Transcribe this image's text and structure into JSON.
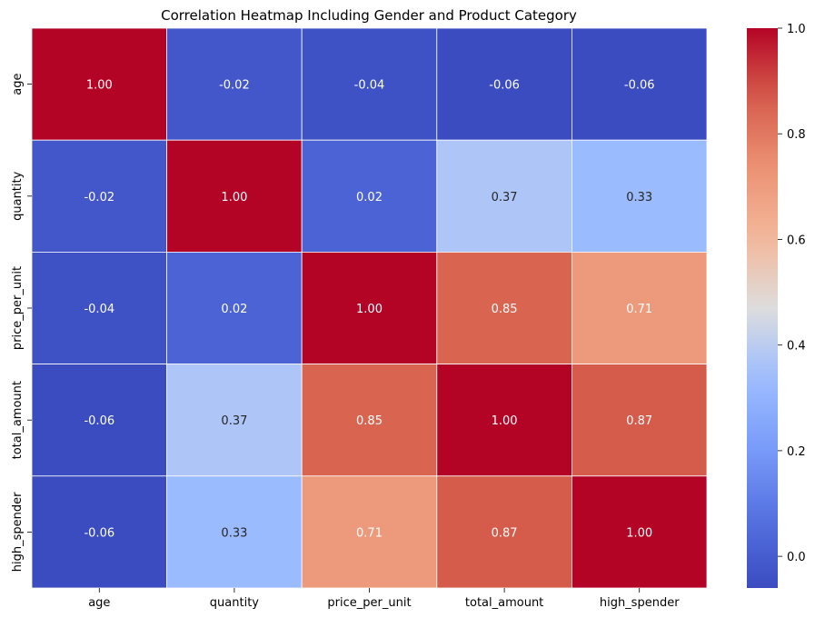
{
  "chart_data": {
    "type": "heatmap",
    "title": "Correlation Heatmap Including Gender and Product Category",
    "xlabel": "",
    "ylabel": "",
    "x_categories": [
      "age",
      "quantity",
      "price_per_unit",
      "total_amount",
      "high_spender"
    ],
    "y_categories": [
      "age",
      "quantity",
      "price_per_unit",
      "total_amount",
      "high_spender"
    ],
    "values": [
      [
        1.0,
        -0.02,
        -0.04,
        -0.06,
        -0.06
      ],
      [
        -0.02,
        1.0,
        0.02,
        0.37,
        0.33
      ],
      [
        -0.04,
        0.02,
        1.0,
        0.85,
        0.71
      ],
      [
        -0.06,
        0.37,
        0.85,
        1.0,
        0.87
      ],
      [
        -0.06,
        0.33,
        0.71,
        0.87,
        1.0
      ]
    ],
    "value_format": "0.00",
    "colormap": "coolwarm",
    "colorbar": {
      "vmin": -0.06,
      "vmax": 1.0,
      "ticks": [
        0.0,
        0.2,
        0.4,
        0.6,
        0.8,
        1.0
      ],
      "tick_labels": [
        "0.0",
        "0.2",
        "0.4",
        "0.6",
        "0.8",
        "1.0"
      ]
    },
    "grid_line_color": "#ffffff"
  }
}
